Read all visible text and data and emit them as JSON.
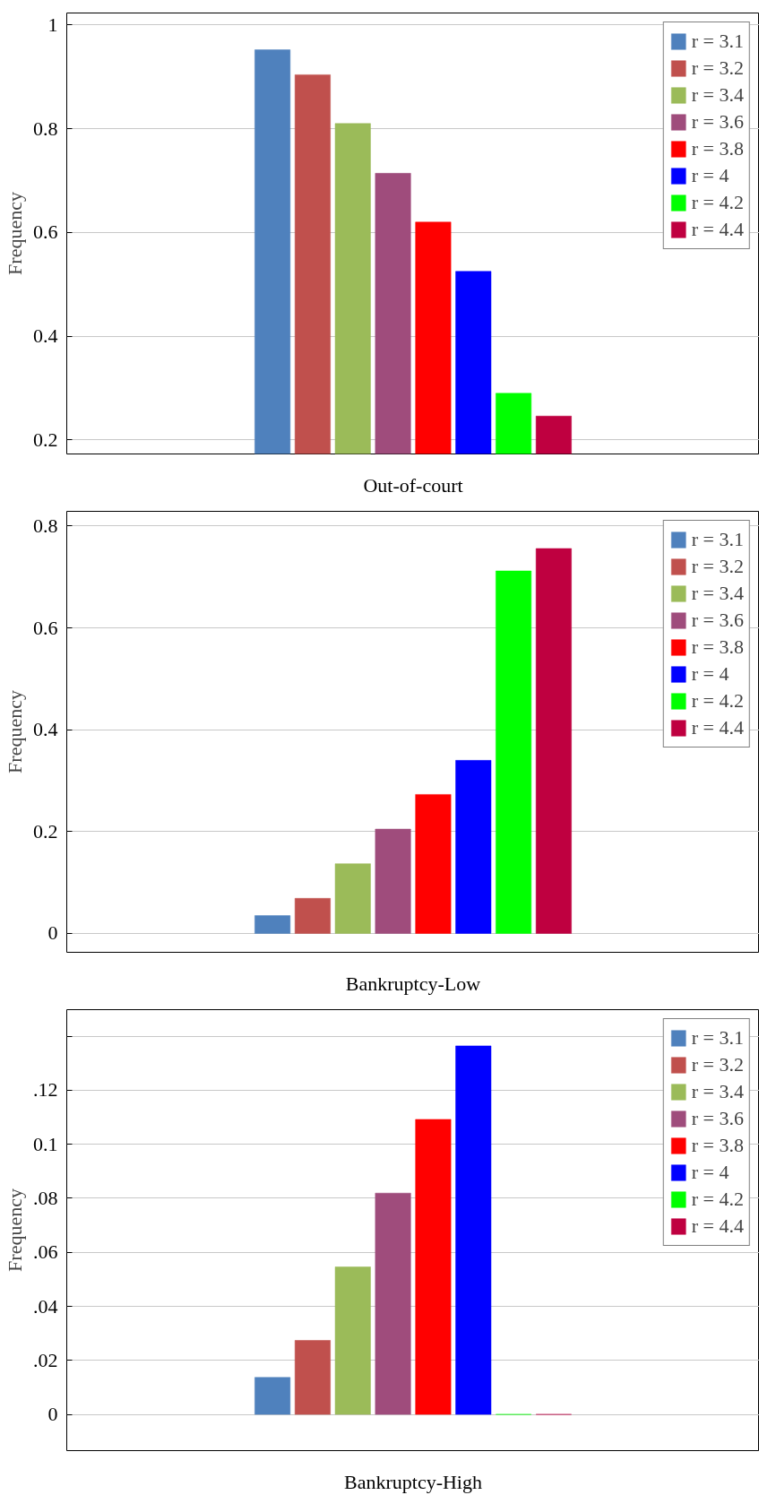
{
  "chart_data": [
    {
      "type": "bar",
      "categories": [
        "Out-of-court"
      ],
      "ylabel": "Frequency",
      "ylim": [
        0.173,
        1.023
      ],
      "yticks": [
        0.2,
        0.4,
        0.6,
        0.8,
        1
      ],
      "grid": "y",
      "legend": "top right",
      "series": [
        {
          "name": "r = 3.1",
          "color": "#4f81bd",
          "values": [
            0.952
          ]
        },
        {
          "name": "r = 3.2",
          "color": "#c0504d",
          "values": [
            0.904
          ]
        },
        {
          "name": "r = 3.4",
          "color": "#9bbb59",
          "values": [
            0.81
          ]
        },
        {
          "name": "r = 3.6",
          "color": "#9f4c7c",
          "values": [
            0.714
          ]
        },
        {
          "name": "r = 3.8",
          "color": "#ff0000",
          "values": [
            0.62
          ]
        },
        {
          "name": "r = 4",
          "color": "#0000ff",
          "values": [
            0.525
          ]
        },
        {
          "name": "r = 4.2",
          "color": "#00ff00",
          "values": [
            0.29
          ]
        },
        {
          "name": "r = 4.4",
          "color": "#bf0040",
          "values": [
            0.246
          ]
        }
      ]
    },
    {
      "type": "bar",
      "categories": [
        "Bankruptcy-Low"
      ],
      "ylabel": "Frequency",
      "ylim": [
        -0.037,
        0.829
      ],
      "yticks": [
        0,
        0.2,
        0.4,
        0.6,
        0.8
      ],
      "grid": "y",
      "legend": "top right",
      "series": [
        {
          "name": "r = 3.1",
          "color": "#4f81bd",
          "values": [
            0.035
          ]
        },
        {
          "name": "r = 3.2",
          "color": "#c0504d",
          "values": [
            0.069
          ]
        },
        {
          "name": "r = 3.4",
          "color": "#9bbb59",
          "values": [
            0.137
          ]
        },
        {
          "name": "r = 3.6",
          "color": "#9f4c7c",
          "values": [
            0.205
          ]
        },
        {
          "name": "r = 3.8",
          "color": "#ff0000",
          "values": [
            0.273
          ]
        },
        {
          "name": "r = 4",
          "color": "#0000ff",
          "values": [
            0.34
          ]
        },
        {
          "name": "r = 4.2",
          "color": "#00ff00",
          "values": [
            0.712
          ]
        },
        {
          "name": "r = 4.4",
          "color": "#bf0040",
          "values": [
            0.756
          ]
        }
      ]
    },
    {
      "type": "bar",
      "categories": [
        "Bankruptcy-High"
      ],
      "ylabel": "Frequency",
      "ylim": [
        -0.0134,
        0.1498
      ],
      "yticks": [
        0,
        {
          "value": 0.02,
          "label": ".02"
        },
        {
          "value": 0.04,
          "label": ".04"
        },
        {
          "value": 0.06,
          "label": ".06"
        },
        {
          "value": 0.08,
          "label": ".08"
        },
        0.1,
        {
          "value": 0.12,
          "label": ".12"
        },
        {
          "value": 0.14,
          "label": null
        }
      ],
      "grid": "y",
      "legend": "top right",
      "series": [
        {
          "name": "r = 3.1",
          "color": "#4f81bd",
          "values": [
            0.0137
          ]
        },
        {
          "name": "r = 3.2",
          "color": "#c0504d",
          "values": [
            0.0274
          ]
        },
        {
          "name": "r = 3.4",
          "color": "#9bbb59",
          "values": [
            0.0546
          ]
        },
        {
          "name": "r = 3.6",
          "color": "#9f4c7c",
          "values": [
            0.0819
          ]
        },
        {
          "name": "r = 3.8",
          "color": "#ff0000",
          "values": [
            0.1092
          ]
        },
        {
          "name": "r = 4",
          "color": "#0000ff",
          "values": [
            0.1364
          ]
        },
        {
          "name": "r = 4.2",
          "color": "#00ff00",
          "values": [
            0
          ]
        },
        {
          "name": "r = 4.4",
          "color": "#bf0040",
          "values": [
            0
          ]
        }
      ]
    }
  ]
}
